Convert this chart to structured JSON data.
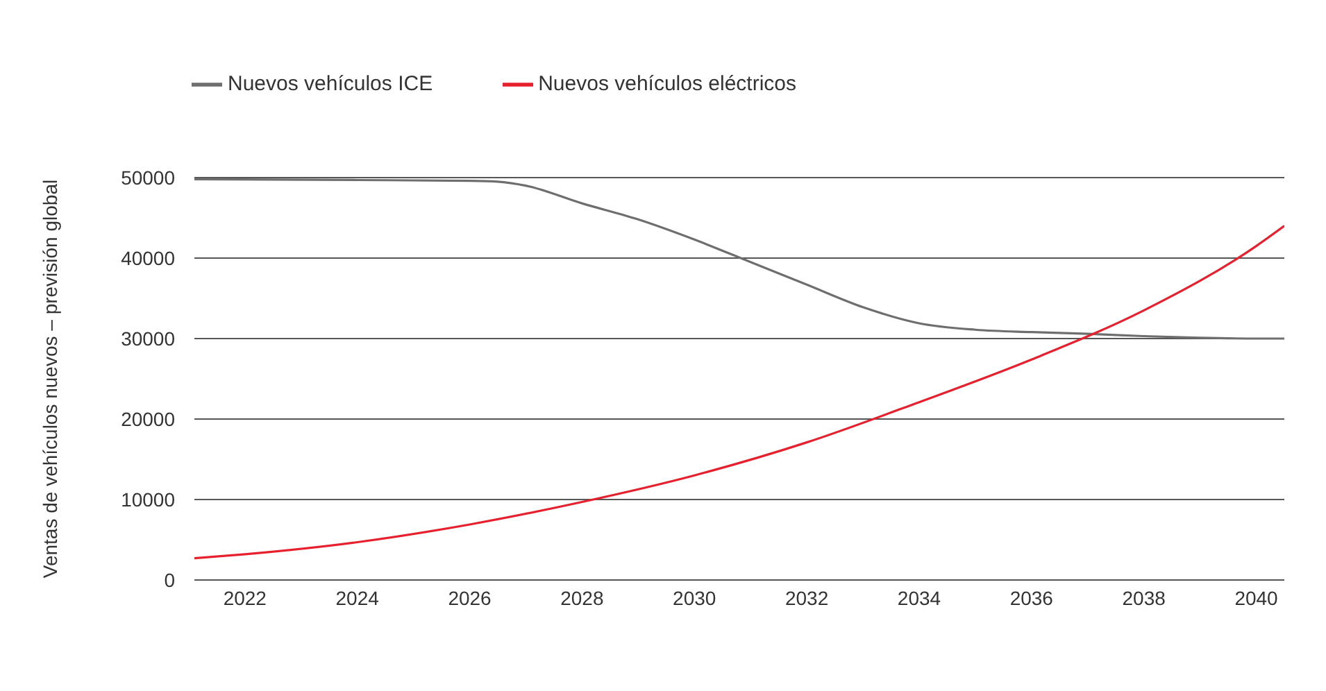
{
  "chart_data": {
    "type": "line",
    "ylabel": "Ventas de vehículos nuevos – previsión global",
    "xlim": [
      2021.1,
      2040.5
    ],
    "xticks": [
      2022,
      2024,
      2026,
      2028,
      2030,
      2032,
      2034,
      2036,
      2038,
      2040
    ],
    "ylim": [
      0,
      50000
    ],
    "yticks": [
      0,
      10000,
      20000,
      30000,
      40000,
      50000
    ],
    "grid": "y",
    "legend": "top left",
    "marker": "none",
    "line_style": "solid",
    "series": [
      {
        "name": "Nuevos vehículos ICE",
        "color": "#6e6e6e",
        "x": [
          2021.1,
          2024,
          2026,
          2026.5,
          2027,
          2028,
          2029,
          2030,
          2031,
          2032,
          2033,
          2034,
          2035,
          2036,
          2037,
          2038,
          2039,
          2040,
          2040.5
        ],
        "values": [
          49800,
          49700,
          49600,
          49500,
          49000,
          46800,
          44800,
          42300,
          39500,
          36700,
          33900,
          31900,
          31100,
          30800,
          30600,
          30300,
          30100,
          30000,
          30000
        ]
      },
      {
        "name": "Nuevos vehículos eléctricos",
        "color": "#e8202e",
        "x": [
          2021.1,
          2022,
          2024,
          2026,
          2028,
          2030,
          2032,
          2034,
          2036,
          2038,
          2040,
          2040.5
        ],
        "values": [
          2700,
          3200,
          4700,
          6900,
          9700,
          13000,
          17100,
          22100,
          27400,
          33500,
          41500,
          44000
        ]
      }
    ]
  }
}
